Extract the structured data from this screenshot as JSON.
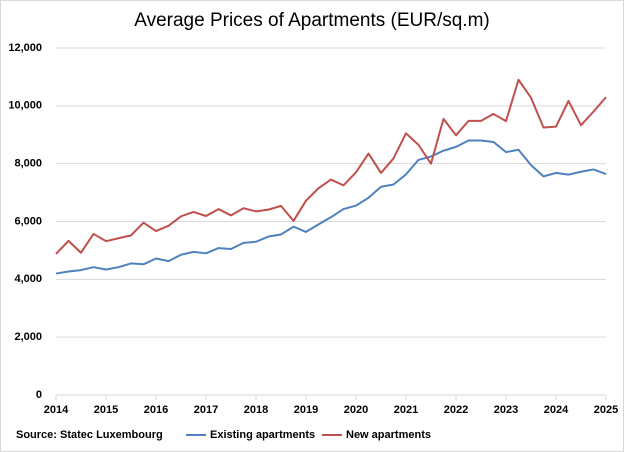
{
  "chart_data": {
    "type": "line",
    "title": "Average Prices of Apartments (EUR/sq.m)",
    "source": "Source: Statec Luxembourg",
    "x": [
      2014,
      2014.25,
      2014.5,
      2014.75,
      2015,
      2015.25,
      2015.5,
      2015.75,
      2016,
      2016.25,
      2016.5,
      2016.75,
      2017,
      2017.25,
      2017.5,
      2017.75,
      2018,
      2018.25,
      2018.5,
      2018.75,
      2019,
      2019.25,
      2019.5,
      2019.75,
      2020,
      2020.25,
      2020.5,
      2020.75,
      2021,
      2021.25,
      2021.5,
      2021.75,
      2022,
      2022.25,
      2022.5,
      2022.75,
      2023,
      2023.25,
      2023.5,
      2023.75,
      2024,
      2024.25,
      2024.5,
      2024.75,
      2025
    ],
    "series": [
      {
        "name": "Existing apartments",
        "color": "#4f81bd",
        "values": [
          4200,
          4270,
          4320,
          4420,
          4340,
          4420,
          4550,
          4520,
          4720,
          4630,
          4850,
          4950,
          4900,
          5080,
          5050,
          5260,
          5300,
          5480,
          5550,
          5820,
          5640,
          5900,
          6150,
          6430,
          6550,
          6820,
          7200,
          7280,
          7630,
          8130,
          8250,
          8450,
          8580,
          8800,
          8800,
          8750,
          8400,
          8480,
          7950,
          7560,
          7680,
          7620,
          7720,
          7800,
          7640
        ]
      },
      {
        "name": "New apartments",
        "color": "#c0504d",
        "values": [
          4880,
          5330,
          4920,
          5570,
          5320,
          5420,
          5520,
          5960,
          5670,
          5850,
          6180,
          6330,
          6190,
          6430,
          6210,
          6460,
          6350,
          6410,
          6540,
          6020,
          6720,
          7150,
          7450,
          7250,
          7700,
          8350,
          7680,
          8180,
          9050,
          8650,
          8000,
          9550,
          8980,
          9480,
          9480,
          9720,
          9470,
          10900,
          10280,
          9250,
          9280,
          10170,
          9330,
          9800,
          10300
        ]
      }
    ],
    "xlim": [
      2014,
      2025
    ],
    "xticks": [
      2014,
      2015,
      2016,
      2017,
      2018,
      2019,
      2020,
      2021,
      2022,
      2023,
      2024,
      2025
    ],
    "ylim": [
      0,
      12000
    ],
    "yticks": [
      0,
      {
        "value": 2000,
        "label": "2,000"
      },
      {
        "value": 4000,
        "label": "4,000"
      },
      {
        "value": 6000,
        "label": "6,000"
      },
      {
        "value": 8000,
        "label": "8,000"
      },
      {
        "value": 10000,
        "label": "10,000"
      },
      {
        "value": 12000,
        "label": "12,000"
      }
    ],
    "grid": true
  }
}
